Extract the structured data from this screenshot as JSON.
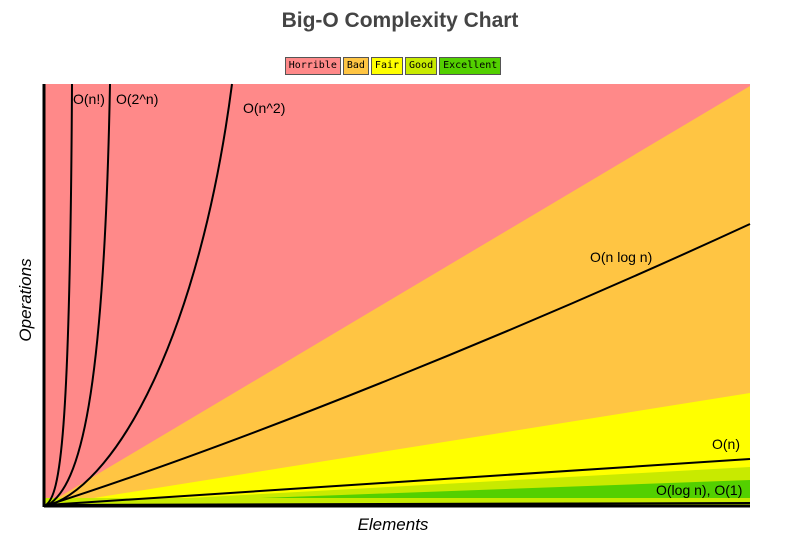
{
  "chart_data": {
    "type": "area",
    "title": "Big-O Complexity Chart",
    "xlabel": "Elements",
    "ylabel": "Operations",
    "grid": false,
    "legend_position": "top-center",
    "legend": [
      {
        "name": "Horrible",
        "color": "#ff8989"
      },
      {
        "name": "Bad",
        "color": "#ffc543"
      },
      {
        "name": "Fair",
        "color": "#ffff00"
      },
      {
        "name": "Good",
        "color": "#c8ea00"
      },
      {
        "name": "Excellent",
        "color": "#53d000"
      }
    ],
    "regions": [
      {
        "name": "Horrible",
        "color": "#ff8989"
      },
      {
        "name": "Bad",
        "color": "#ffc543"
      },
      {
        "name": "Fair",
        "color": "#ffff00"
      },
      {
        "name": "Good",
        "color": "#c8ea00"
      },
      {
        "name": "Excellent",
        "color": "#53d000"
      }
    ],
    "curves": [
      {
        "label": "O(n!)",
        "fn": "factorial"
      },
      {
        "label": "O(2^n)",
        "fn": "exponential"
      },
      {
        "label": "O(n^2)",
        "fn": "quadratic"
      },
      {
        "label": "O(n log n)",
        "fn": "nlogn"
      },
      {
        "label": "O(n)",
        "fn": "linear"
      },
      {
        "label": "O(log n), O(1)",
        "fn": "log_const"
      }
    ]
  }
}
